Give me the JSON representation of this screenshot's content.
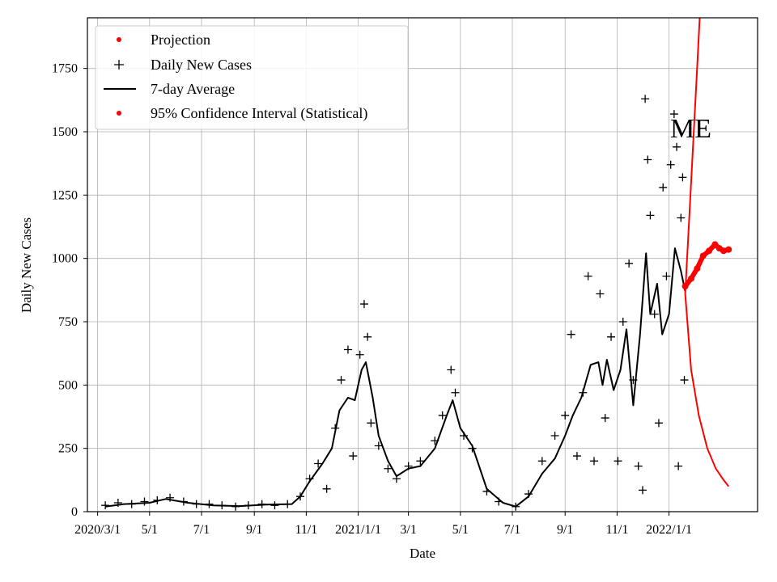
{
  "chart_data": {
    "type": "line",
    "state_label": "ME",
    "xlabel": "Date",
    "ylabel": "Daily New Cases",
    "xlim": [
      "2020-02-18",
      "2022-04-15"
    ],
    "ylim": [
      0,
      1950
    ],
    "grid": true,
    "legend_position": "top-left",
    "x_ticks": [
      {
        "date": "2020-03-01",
        "label": "2020/3/1"
      },
      {
        "date": "2020-05-01",
        "label": "5/1"
      },
      {
        "date": "2020-07-01",
        "label": "7/1"
      },
      {
        "date": "2020-09-01",
        "label": "9/1"
      },
      {
        "date": "2020-11-01",
        "label": "11/1"
      },
      {
        "date": "2021-01-01",
        "label": "2021/1/1"
      },
      {
        "date": "2021-03-01",
        "label": "3/1"
      },
      {
        "date": "2021-05-01",
        "label": "5/1"
      },
      {
        "date": "2021-07-01",
        "label": "7/1"
      },
      {
        "date": "2021-09-01",
        "label": "9/1"
      },
      {
        "date": "2021-11-01",
        "label": "11/1"
      },
      {
        "date": "2022-01-01",
        "label": "2022/1/1"
      }
    ],
    "y_ticks": [
      0,
      250,
      500,
      750,
      1000,
      1250,
      1500,
      1750
    ],
    "legend": [
      {
        "label": "Projection",
        "marker": "dot",
        "color": "#ff0000"
      },
      {
        "label": "Daily New Cases",
        "marker": "plus",
        "color": "#000000"
      },
      {
        "label": "7-day Average",
        "marker": "line",
        "color": "#000000"
      },
      {
        "label": "95% Confidence Interval (Statistical)",
        "marker": "dot",
        "color": "#ff0000"
      }
    ],
    "series": [
      {
        "name": "7-day Average",
        "style": "line",
        "color": "#000000",
        "points": [
          [
            "2020-03-10",
            20
          ],
          [
            "2020-04-01",
            30
          ],
          [
            "2020-05-01",
            35
          ],
          [
            "2020-05-20",
            50
          ],
          [
            "2020-06-15",
            35
          ],
          [
            "2020-07-15",
            25
          ],
          [
            "2020-08-15",
            22
          ],
          [
            "2020-09-15",
            28
          ],
          [
            "2020-10-15",
            30
          ],
          [
            "2020-10-25",
            60
          ],
          [
            "2020-11-05",
            120
          ],
          [
            "2020-11-20",
            190
          ],
          [
            "2020-12-01",
            250
          ],
          [
            "2020-12-10",
            400
          ],
          [
            "2020-12-20",
            450
          ],
          [
            "2020-12-28",
            440
          ],
          [
            "2021-01-05",
            560
          ],
          [
            "2021-01-10",
            590
          ],
          [
            "2021-01-18",
            450
          ],
          [
            "2021-01-25",
            300
          ],
          [
            "2021-02-05",
            200
          ],
          [
            "2021-02-15",
            140
          ],
          [
            "2021-03-01",
            170
          ],
          [
            "2021-03-15",
            180
          ],
          [
            "2021-04-01",
            250
          ],
          [
            "2021-04-15",
            380
          ],
          [
            "2021-04-22",
            440
          ],
          [
            "2021-05-01",
            330
          ],
          [
            "2021-05-15",
            260
          ],
          [
            "2021-06-01",
            90
          ],
          [
            "2021-06-20",
            35
          ],
          [
            "2021-07-05",
            20
          ],
          [
            "2021-07-20",
            60
          ],
          [
            "2021-08-05",
            150
          ],
          [
            "2021-08-20",
            210
          ],
          [
            "2021-09-01",
            300
          ],
          [
            "2021-09-10",
            380
          ],
          [
            "2021-09-20",
            450
          ],
          [
            "2021-10-01",
            580
          ],
          [
            "2021-10-10",
            590
          ],
          [
            "2021-10-15",
            500
          ],
          [
            "2021-10-20",
            600
          ],
          [
            "2021-10-28",
            480
          ],
          [
            "2021-11-05",
            560
          ],
          [
            "2021-11-12",
            720
          ],
          [
            "2021-11-20",
            420
          ],
          [
            "2021-11-28",
            700
          ],
          [
            "2021-12-05",
            1020
          ],
          [
            "2021-12-10",
            780
          ],
          [
            "2021-12-18",
            900
          ],
          [
            "2021-12-24",
            700
          ],
          [
            "2022-01-01",
            780
          ],
          [
            "2022-01-08",
            1040
          ],
          [
            "2022-01-15",
            950
          ],
          [
            "2022-01-20",
            870
          ]
        ]
      },
      {
        "name": "Daily New Cases",
        "style": "plus",
        "color": "#000000",
        "points": [
          [
            "2020-03-10",
            25
          ],
          [
            "2020-03-25",
            35
          ],
          [
            "2020-04-10",
            30
          ],
          [
            "2020-04-25",
            40
          ],
          [
            "2020-05-10",
            45
          ],
          [
            "2020-05-25",
            55
          ],
          [
            "2020-06-10",
            40
          ],
          [
            "2020-06-25",
            30
          ],
          [
            "2020-07-10",
            30
          ],
          [
            "2020-07-25",
            25
          ],
          [
            "2020-08-10",
            20
          ],
          [
            "2020-08-25",
            25
          ],
          [
            "2020-09-10",
            30
          ],
          [
            "2020-09-25",
            25
          ],
          [
            "2020-10-10",
            30
          ],
          [
            "2020-10-25",
            60
          ],
          [
            "2020-11-05",
            130
          ],
          [
            "2020-11-15",
            190
          ],
          [
            "2020-11-25",
            90
          ],
          [
            "2020-12-05",
            330
          ],
          [
            "2020-12-12",
            520
          ],
          [
            "2020-12-20",
            640
          ],
          [
            "2020-12-26",
            220
          ],
          [
            "2021-01-03",
            620
          ],
          [
            "2021-01-08",
            820
          ],
          [
            "2021-01-12",
            690
          ],
          [
            "2021-01-16",
            350
          ],
          [
            "2021-01-25",
            260
          ],
          [
            "2021-02-05",
            170
          ],
          [
            "2021-02-15",
            130
          ],
          [
            "2021-03-01",
            180
          ],
          [
            "2021-03-15",
            200
          ],
          [
            "2021-04-01",
            280
          ],
          [
            "2021-04-10",
            380
          ],
          [
            "2021-04-20",
            560
          ],
          [
            "2021-04-25",
            470
          ],
          [
            "2021-05-05",
            300
          ],
          [
            "2021-05-15",
            250
          ],
          [
            "2021-06-01",
            80
          ],
          [
            "2021-06-15",
            40
          ],
          [
            "2021-07-05",
            20
          ],
          [
            "2021-07-20",
            70
          ],
          [
            "2021-08-05",
            200
          ],
          [
            "2021-08-20",
            300
          ],
          [
            "2021-09-01",
            380
          ],
          [
            "2021-09-08",
            700
          ],
          [
            "2021-09-15",
            220
          ],
          [
            "2021-09-22",
            470
          ],
          [
            "2021-09-28",
            930
          ],
          [
            "2021-10-05",
            200
          ],
          [
            "2021-10-12",
            860
          ],
          [
            "2021-10-18",
            370
          ],
          [
            "2021-10-25",
            690
          ],
          [
            "2021-11-02",
            200
          ],
          [
            "2021-11-08",
            750
          ],
          [
            "2021-11-15",
            980
          ],
          [
            "2021-11-20",
            520
          ],
          [
            "2021-11-26",
            180
          ],
          [
            "2021-12-01",
            85
          ],
          [
            "2021-12-04",
            1630
          ],
          [
            "2021-12-07",
            1390
          ],
          [
            "2021-12-10",
            1170
          ],
          [
            "2021-12-15",
            780
          ],
          [
            "2021-12-20",
            350
          ],
          [
            "2021-12-25",
            1280
          ],
          [
            "2021-12-29",
            930
          ],
          [
            "2022-01-03",
            1370
          ],
          [
            "2022-01-07",
            1570
          ],
          [
            "2022-01-10",
            1440
          ],
          [
            "2022-01-12",
            180
          ],
          [
            "2022-01-15",
            1160
          ],
          [
            "2022-01-17",
            1320
          ],
          [
            "2022-01-19",
            520
          ]
        ]
      },
      {
        "name": "Projection",
        "style": "dots",
        "color": "#ff0000",
        "points": [
          [
            "2022-01-20",
            890
          ],
          [
            "2022-01-27",
            920
          ],
          [
            "2022-02-03",
            960
          ],
          [
            "2022-02-10",
            1010
          ],
          [
            "2022-02-17",
            1030
          ],
          [
            "2022-02-24",
            1055
          ],
          [
            "2022-03-01",
            1040
          ],
          [
            "2022-03-06",
            1030
          ],
          [
            "2022-03-12",
            1035
          ]
        ]
      },
      {
        "name": "95% Confidence Interval (Statistical)",
        "style": "band",
        "color": "#ff0000",
        "upper": [
          [
            "2022-01-20",
            860
          ],
          [
            "2022-01-27",
            1300
          ],
          [
            "2022-02-03",
            1750
          ],
          [
            "2022-02-06",
            1950
          ]
        ],
        "lower": [
          [
            "2022-01-20",
            860
          ],
          [
            "2022-01-27",
            560
          ],
          [
            "2022-02-05",
            380
          ],
          [
            "2022-02-15",
            250
          ],
          [
            "2022-02-25",
            170
          ],
          [
            "2022-03-05",
            130
          ],
          [
            "2022-03-12",
            100
          ]
        ]
      }
    ]
  }
}
